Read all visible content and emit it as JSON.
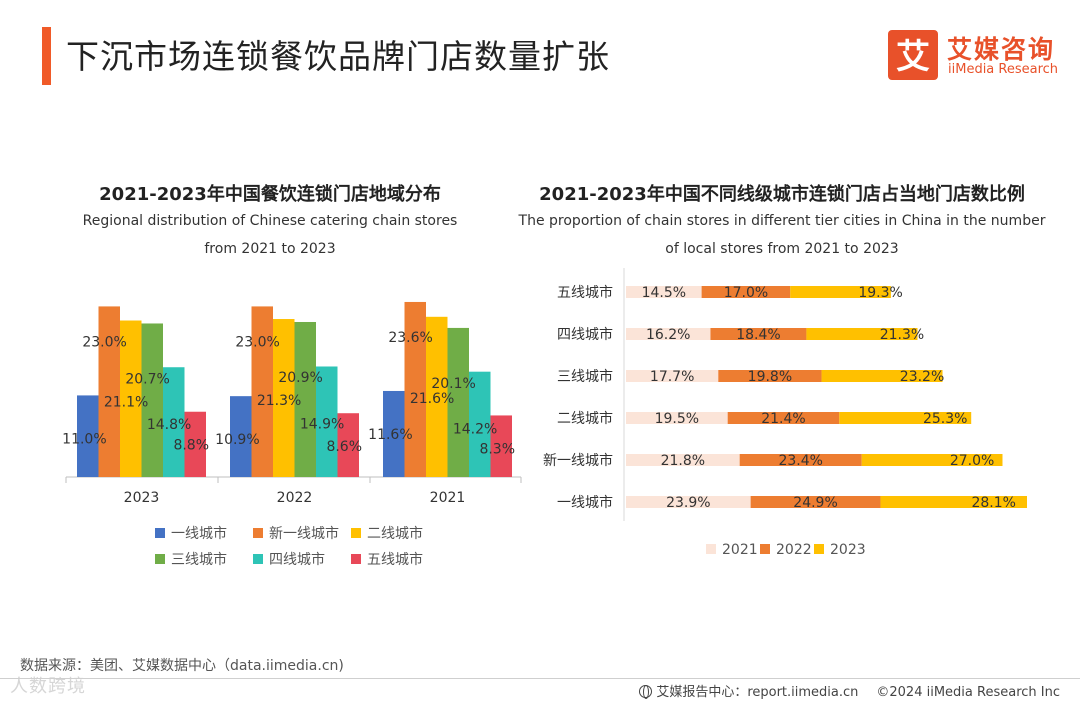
{
  "page": {
    "title": "下沉市场连锁餐饮品牌门店数量扩张",
    "accent_color": "#F05A28"
  },
  "logo": {
    "mark": "艾",
    "name_cn": "艾媒咨询",
    "name_en": "iiMedia Research",
    "color": "#E8512A"
  },
  "chart_data": [
    {
      "type": "bar",
      "title": "2021-2023年中国餐饮连锁门店地域分布",
      "subtitle_lines": [
        "Regional distribution of Chinese catering chain stores",
        "from 2021 to 2023"
      ],
      "categories": [
        "2023",
        "2022",
        "2021"
      ],
      "series": [
        {
          "name": "一线城市",
          "color": "#4472C4",
          "values": [
            11.0,
            10.9,
            11.6
          ],
          "labels": [
            "11.0%",
            "10.9%",
            "11.6%"
          ]
        },
        {
          "name": "新一线城市",
          "color": "#ED7D31",
          "values": [
            23.0,
            23.0,
            23.6
          ],
          "labels": [
            "23.0%",
            "23.0%",
            "23.6%"
          ]
        },
        {
          "name": "二线城市",
          "color": "#FFC000",
          "values": [
            21.1,
            21.3,
            21.6
          ],
          "labels": [
            "21.1%",
            "21.3%",
            "21.6%"
          ]
        },
        {
          "name": "三线城市",
          "color": "#70AD47",
          "values": [
            20.7,
            20.9,
            20.1
          ],
          "labels": [
            "20.7%",
            "20.9%",
            "20.1%"
          ]
        },
        {
          "name": "四线城市",
          "color": "#2EC4B6",
          "values": [
            14.8,
            14.9,
            14.2
          ],
          "labels": [
            "14.8%",
            "14.9%",
            "14.2%"
          ]
        },
        {
          "name": "五线城市",
          "color": "#E84858",
          "values": [
            8.8,
            8.6,
            8.3
          ],
          "labels": [
            "8.8%",
            "8.6%",
            "8.3%"
          ]
        }
      ],
      "ylim": [
        0,
        24
      ],
      "grid": false,
      "legend_position": "bottom"
    },
    {
      "type": "bar",
      "orientation": "horizontal",
      "stacked": true,
      "title": "2021-2023年中国不同线级城市连锁门店占当地门店数比例",
      "subtitle_lines": [
        "The proportion of chain stores in different tier cities in China in the number",
        "of local stores from 2021 to 2023"
      ],
      "categories": [
        "五线城市",
        "四线城市",
        "三线城市",
        "二线城市",
        "新一线城市",
        "一线城市"
      ],
      "series": [
        {
          "name": "2021",
          "color": "#FBE4D8",
          "values": [
            14.5,
            16.2,
            17.7,
            19.5,
            21.8,
            23.9
          ],
          "labels": [
            "14.5%",
            "16.2%",
            "17.7%",
            "19.5%",
            "21.8%",
            "23.9%"
          ]
        },
        {
          "name": "2022",
          "color": "#ED7D31",
          "values": [
            17.0,
            18.4,
            19.8,
            21.4,
            23.4,
            24.9
          ],
          "labels": [
            "17.0%",
            "18.4%",
            "19.8%",
            "21.4%",
            "23.4%",
            "24.9%"
          ]
        },
        {
          "name": "2023",
          "color": "#FFC000",
          "values": [
            19.3,
            21.3,
            23.2,
            25.3,
            27.0,
            28.1
          ],
          "labels": [
            "19.3%",
            "21.3%",
            "23.2%",
            "25.3%",
            "27.0%",
            "28.1%"
          ]
        }
      ],
      "grid": false,
      "legend_position": "bottom"
    }
  ],
  "footer": {
    "source": "数据来源：美团、艾媒数据中心（data.iimedia.cn)",
    "watermark": "人数跨境",
    "report_center": "艾媒报告中心：report.iimedia.cn",
    "copyright": "©2024  iiMedia Research  Inc"
  }
}
